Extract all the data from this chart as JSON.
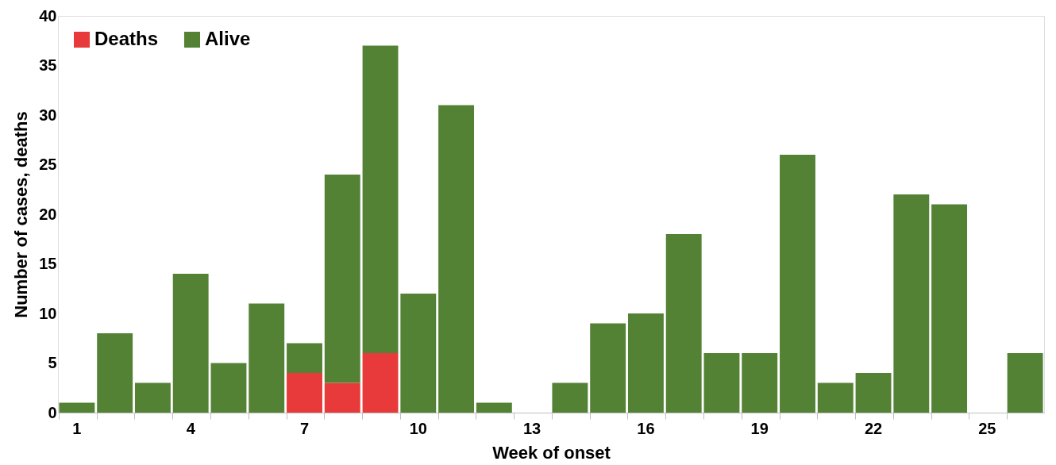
{
  "chart_data": {
    "type": "bar",
    "stacked": true,
    "xlabel": "Week of onset",
    "ylabel": "Number of cases, deaths",
    "categories": [
      "1",
      null,
      null,
      "4",
      null,
      null,
      "7",
      null,
      null,
      "10",
      null,
      null,
      "13",
      null,
      null,
      "16",
      null,
      null,
      "19",
      null,
      null,
      "22",
      null,
      null,
      "25",
      null
    ],
    "series": [
      {
        "name": "Deaths",
        "color": "#e83a3a",
        "values": [
          0,
          0,
          0,
          0,
          0,
          0,
          4,
          3,
          6,
          0,
          0,
          0,
          0,
          0,
          0,
          0,
          0,
          0,
          0,
          0,
          0,
          0,
          0,
          0,
          0,
          0
        ]
      },
      {
        "name": "Alive",
        "color": "#548235",
        "values": [
          1,
          8,
          3,
          14,
          5,
          11,
          3,
          21,
          31,
          12,
          31,
          1,
          0,
          3,
          9,
          10,
          18,
          6,
          6,
          26,
          3,
          4,
          22,
          21,
          0,
          6
        ]
      }
    ],
    "ylim": [
      0,
      40
    ],
    "yticks": [
      0,
      5,
      10,
      15,
      20,
      25,
      30,
      35,
      40
    ],
    "grid": false,
    "legend": "top left"
  }
}
